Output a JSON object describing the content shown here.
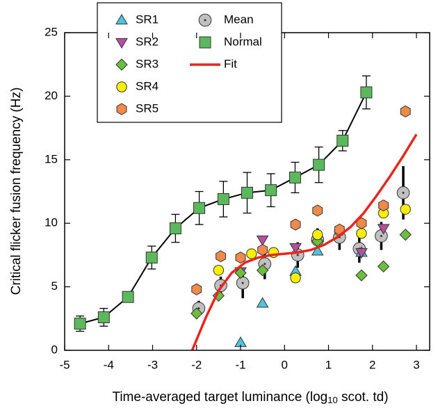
{
  "chart_data": {
    "type": "scatter",
    "y_label": "Critical flicker fusion frequency (Hz)",
    "x_label_parts": [
      "Time-averaged target luminance (log",
      "10",
      " scot. td)"
    ],
    "xlim": [
      -5,
      3.3
    ],
    "ylim": [
      0,
      25
    ],
    "xticks": [
      -5,
      -4,
      -3,
      -2,
      -1,
      0,
      1,
      2,
      3
    ],
    "yticks": [
      0,
      5,
      10,
      15,
      20,
      25
    ],
    "series": [
      {
        "name": "SR1",
        "color": "#4fc3dc",
        "marker": "triangle-up",
        "x": [
          -1,
          -0.5,
          0.25,
          0.75,
          1.75
        ],
        "values": [
          0.6,
          3.7,
          6.2,
          7.8,
          7.7
        ]
      },
      {
        "name": "SR2",
        "color": "#b4509c",
        "marker": "triangle-down",
        "x": [
          -1,
          -0.5,
          0.25,
          1.75,
          2.25
        ],
        "values": [
          6.2,
          8.7,
          8.1,
          7.7,
          9.6
        ]
      },
      {
        "name": "SR3",
        "color": "#6cbf3c",
        "marker": "diamond",
        "x": [
          -2,
          -1.5,
          -1,
          -0.5,
          0.75,
          1.75,
          2.25,
          2.75
        ],
        "values": [
          2.9,
          4.3,
          6.1,
          6.3,
          8.6,
          5.9,
          6.6,
          9.1
        ]
      },
      {
        "name": "SR4",
        "color": "#f5f000",
        "marker": "circle",
        "x": [
          -1.5,
          -0.75,
          -0.25,
          0.25,
          0.75,
          1.25,
          1.75,
          2.25,
          2.75
        ],
        "values": [
          6.3,
          7.6,
          7.7,
          5.7,
          9.1,
          9.4,
          9.2,
          10.8,
          11.1
        ]
      },
      {
        "name": "SR5",
        "color": "#f08a4b",
        "marker": "hexagon",
        "x": [
          -2,
          -1.45,
          -1,
          -0.5,
          0.25,
          0.75,
          1.25,
          1.75,
          2.25,
          2.75
        ],
        "values": [
          4.8,
          7.4,
          7.3,
          7.9,
          9.9,
          11.0,
          9.5,
          10.0,
          11.4,
          18.8
        ]
      },
      {
        "name": "Mean",
        "color": "#c0c0c0",
        "marker": "circle-dot",
        "x": [
          -1.95,
          -1.45,
          -0.95,
          -0.45,
          0.3,
          0.75,
          1.25,
          1.7,
          2.2,
          2.7
        ],
        "values": [
          3.3,
          5.1,
          5.3,
          6.8,
          7.5,
          8.7,
          8.9,
          8.0,
          9.0,
          12.4
        ],
        "errors": [
          0.6,
          0.7,
          1.2,
          1.2,
          1.0,
          0.9,
          1.0,
          1.1,
          1.1,
          2.1
        ]
      },
      {
        "name": "Normal",
        "color": "#5cb85c",
        "marker": "square",
        "line": "#000000",
        "x": [
          -4.65,
          -4.11,
          -3.56,
          -3.02,
          -2.48,
          -1.94,
          -1.39,
          -0.85,
          -0.31,
          0.24,
          0.78,
          1.32,
          1.86
        ],
        "values": [
          2.1,
          2.6,
          4.2,
          7.3,
          9.6,
          11.2,
          11.9,
          12.4,
          12.6,
          13.6,
          14.6,
          16.5,
          20.3
        ],
        "errors": [
          0.6,
          0.7,
          0.2,
          0.9,
          1.1,
          1.3,
          1.4,
          1.6,
          1.3,
          1.2,
          1.4,
          0.8,
          1.3
        ]
      },
      {
        "name": "Fit",
        "color": "#e8261f",
        "marker": "none",
        "x": [
          -2.1,
          -1.8,
          -1.5,
          -1.2,
          -0.9,
          -0.6,
          -0.3,
          0,
          0.3,
          0.6,
          0.9,
          1.2,
          1.5,
          1.8,
          2.1,
          2.4,
          2.7,
          3.0
        ],
        "values": [
          0,
          2.5,
          4.7,
          6.1,
          6.9,
          7.3,
          7.5,
          7.6,
          7.7,
          7.9,
          8.3,
          8.9,
          9.7,
          10.8,
          12.2,
          13.7,
          15.3,
          17.0
        ]
      }
    ]
  }
}
